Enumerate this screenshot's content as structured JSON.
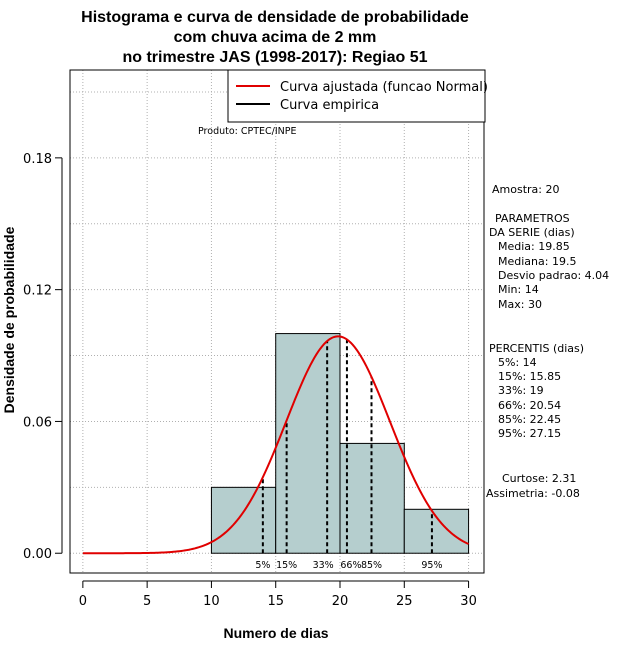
{
  "chart_data": {
    "type": "bar",
    "title_lines": [
      "Histograma e curva de densidade de probabilidade",
      "com chuva acima de 2 mm",
      "no trimestre JAS (1998-2017): Regiao 51"
    ],
    "xlabel": "Numero de dias",
    "ylabel": "Densidade de probabilidade",
    "xlim": [
      -1,
      31.2
    ],
    "ylim": [
      -0.009,
      0.22
    ],
    "x_ticks": [
      0,
      5,
      10,
      15,
      20,
      25,
      30
    ],
    "y_ticks": [
      0.0,
      0.06,
      0.12,
      0.18
    ],
    "y_tick_labels": [
      "0.00",
      "0.06",
      "0.12",
      "0.18"
    ],
    "grid": true,
    "bar_color": "#b5cece",
    "histogram": [
      {
        "x0": 10,
        "x1": 15,
        "density": 0.03
      },
      {
        "x0": 15,
        "x1": 20,
        "density": 0.1
      },
      {
        "x0": 20,
        "x1": 25,
        "density": 0.05
      },
      {
        "x0": 25,
        "x1": 30,
        "density": 0.02
      }
    ],
    "normal_fit": {
      "mean": 19.85,
      "sd": 4.04,
      "x_from": 0,
      "x_to": 30,
      "color": "#e00000"
    },
    "percentile_lines": [
      {
        "label": "5%",
        "x": 14
      },
      {
        "label": "15%",
        "x": 15.85
      },
      {
        "label": "33%",
        "x": 19
      },
      {
        "label": "66%",
        "x": 20.54
      },
      {
        "label": "85%",
        "x": 22.45
      },
      {
        "label": "95%",
        "x": 27.15
      }
    ],
    "legend": {
      "position": "top-right",
      "entries": [
        {
          "label": "Curva ajustada (funcao Normal)",
          "color": "#e00000"
        },
        {
          "label": "Curva empirica",
          "color": "#000000"
        }
      ]
    },
    "product_label": "Produto: CPTEC/INPE",
    "stats_panel": {
      "amostra": "Amostra: 20",
      "params_header": [
        "PARAMETROS",
        "DA SERIE (dias)"
      ],
      "params": [
        "Media: 19.85",
        "Mediana: 19.5",
        "Desvio padrao: 4.04",
        "Min: 14",
        "Max: 30"
      ],
      "percentis_header": "PERCENTIS (dias)",
      "percentis": [
        "5%: 14",
        "15%: 15.85",
        "33%: 19",
        "66%: 20.54",
        "85%: 22.45",
        "95%: 27.15"
      ],
      "shape": [
        "Curtose: 2.31",
        "Assimetria: -0.08"
      ]
    }
  }
}
